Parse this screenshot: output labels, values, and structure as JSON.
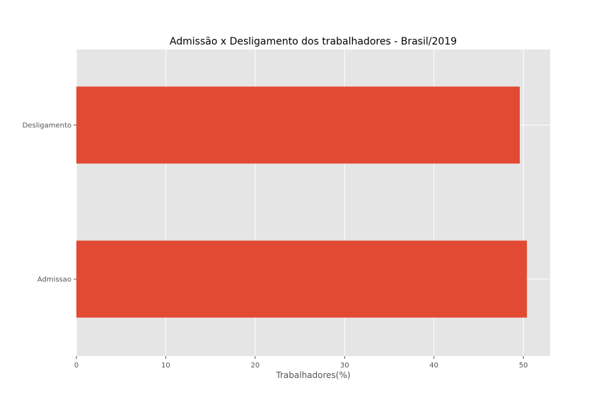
{
  "chart_data": {
    "type": "bar",
    "orientation": "horizontal",
    "title": "Admissão x Desligamento dos trabalhadores - Brasil/2019",
    "xlabel": "Trabalhadores(%)",
    "ylabel": "",
    "categories": [
      "Admissao",
      "Desligamento"
    ],
    "values": [
      50.4,
      49.6
    ],
    "xlim": [
      0,
      53
    ],
    "x_ticks": [
      "0",
      "10",
      "20",
      "30",
      "40",
      "50"
    ],
    "grid": true,
    "bar_color": "#E24A33",
    "background_color": "#E5E5E5",
    "grid_color": "#FFFFFF"
  }
}
